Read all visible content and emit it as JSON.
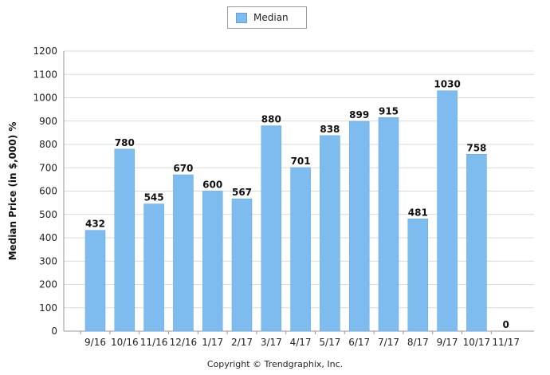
{
  "chart_data": {
    "type": "bar",
    "categories": [
      "9/16",
      "10/16",
      "11/16",
      "12/16",
      "1/17",
      "2/17",
      "3/17",
      "4/17",
      "5/17",
      "6/17",
      "7/17",
      "8/17",
      "9/17",
      "10/17",
      "11/17"
    ],
    "series": [
      {
        "name": "Median",
        "values": [
          432,
          780,
          545,
          670,
          600,
          567,
          880,
          701,
          838,
          899,
          915,
          481,
          1030,
          758,
          0
        ]
      }
    ],
    "ylabel": "Median Price (in $,000) %",
    "xlabel": "",
    "ylim": [
      0,
      1200
    ],
    "yticks": [
      0,
      100,
      200,
      300,
      400,
      500,
      600,
      700,
      800,
      900,
      1000,
      1100,
      1200
    ],
    "grid": true,
    "legend": "top-center",
    "bar_color": "#7ebcef",
    "bar_edge_color": "#5fa3de"
  },
  "footer": {
    "copyright": "Copyright © Trendgraphix, Inc."
  }
}
